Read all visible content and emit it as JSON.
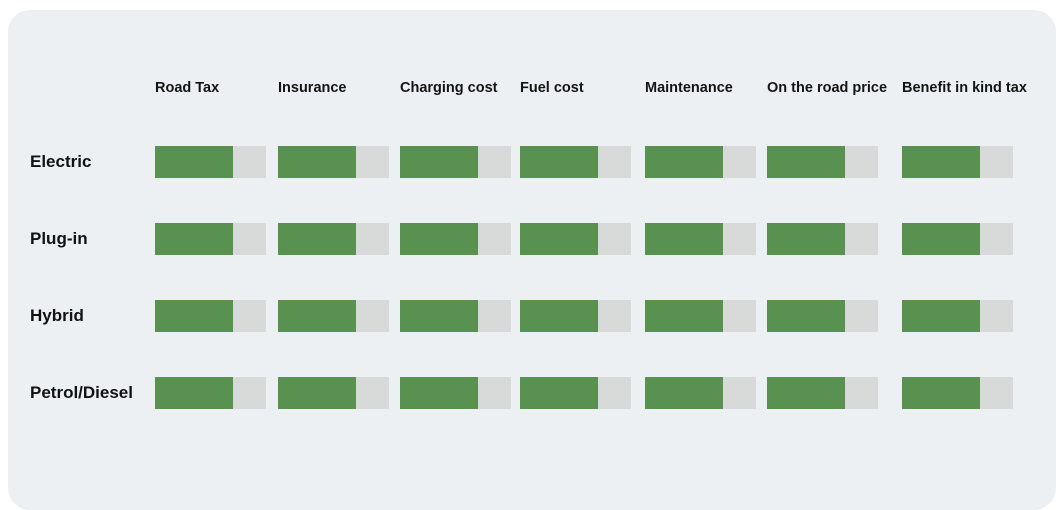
{
  "colors": {
    "page_bg": "#ffffff",
    "card_bg": "#ecf0f2",
    "bar_fill_green": "#599151",
    "bar_track_gray": "#d8dad9",
    "text": "#141414"
  },
  "matrix": {
    "columns": [
      "Road Tax",
      "Insurance",
      "Charging cost",
      "Fuel cost",
      "Maintenance",
      "On the road price",
      "Benefit in kind tax"
    ],
    "rows": [
      {
        "label": "Electric",
        "fill_fractions": [
          0.7,
          0.7,
          0.7,
          0.7,
          0.7,
          0.7,
          0.7
        ]
      },
      {
        "label": "Plug-in",
        "fill_fractions": [
          0.7,
          0.7,
          0.7,
          0.7,
          0.7,
          0.7,
          0.7
        ]
      },
      {
        "label": "Hybrid",
        "fill_fractions": [
          0.7,
          0.7,
          0.7,
          0.7,
          0.7,
          0.7,
          0.7
        ]
      },
      {
        "label": "Petrol/Diesel",
        "fill_fractions": [
          0.7,
          0.7,
          0.7,
          0.7,
          0.7,
          0.7,
          0.7
        ]
      }
    ]
  },
  "chart_data": {
    "type": "bar",
    "title": "",
    "categories": [
      "Road Tax",
      "Insurance",
      "Charging cost",
      "Fuel cost",
      "Maintenance",
      "On the road price",
      "Benefit in kind tax"
    ],
    "series": [
      {
        "name": "Electric",
        "values": [
          0.7,
          0.7,
          0.7,
          0.7,
          0.7,
          0.7,
          0.7
        ]
      },
      {
        "name": "Plug-in",
        "values": [
          0.7,
          0.7,
          0.7,
          0.7,
          0.7,
          0.7,
          0.7
        ]
      },
      {
        "name": "Hybrid",
        "values": [
          0.7,
          0.7,
          0.7,
          0.7,
          0.7,
          0.7,
          0.7
        ]
      },
      {
        "name": "Petrol/Diesel",
        "values": [
          0.7,
          0.7,
          0.7,
          0.7,
          0.7,
          0.7,
          0.7
        ]
      }
    ],
    "xlabel": "",
    "ylabel": "",
    "ylim": [
      0,
      1
    ],
    "legend_position": "none",
    "grid": false,
    "layout": "horizontal bar matrix: one partially-filled bar per row/column cell"
  }
}
